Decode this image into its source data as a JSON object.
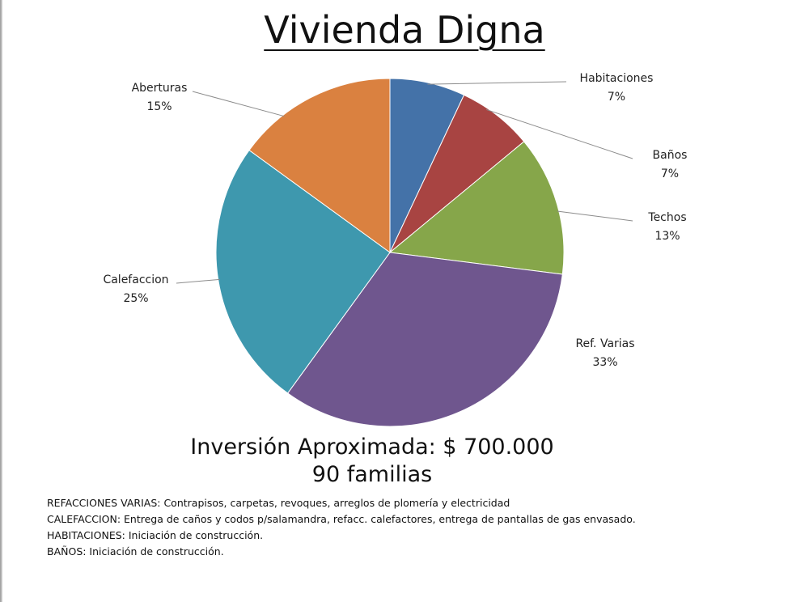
{
  "title": "Vivienda Digna",
  "chart_data": {
    "type": "pie",
    "title": "Vivienda Digna",
    "slices": [
      {
        "label": "Habitaciones",
        "percent_label": "7%",
        "value": 7,
        "color": "#4472A8"
      },
      {
        "label": "Baños",
        "percent_label": "7%",
        "value": 7,
        "color": "#A84442"
      },
      {
        "label": "Techos",
        "percent_label": "13%",
        "value": 13,
        "color": "#86A64A"
      },
      {
        "label": "Ref. Varias",
        "percent_label": "33%",
        "value": 33,
        "color": "#6F568E"
      },
      {
        "label": "Calefaccion",
        "percent_label": "25%",
        "value": 25,
        "color": "#3E98AE"
      },
      {
        "label": "Aberturas",
        "percent_label": "15%",
        "value": 15,
        "color": "#DA8140"
      }
    ],
    "start_angle": "12 o'clock",
    "direction": "clockwise",
    "legend": "none (data labels with leader lines)"
  },
  "investment": {
    "line1": "Inversión Aproximada:  $ 700.000",
    "line2": "90 familias"
  },
  "notes": [
    "REFACCIONES VARIAS: Contrapisos, carpetas, revoques, arreglos de plomería y electricidad",
    "CALEFACCION: Entrega de caños y codos p/salamandra, refacc. calefactores, entrega de pantallas de gas envasado.",
    "HABITACIONES: Iniciación de construcción.",
    "BAÑOS: Iniciación de construcción."
  ]
}
